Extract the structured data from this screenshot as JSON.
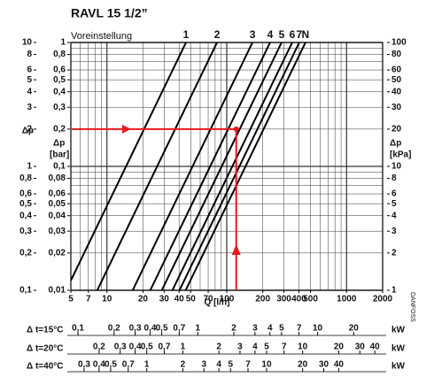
{
  "chart_data": {
    "type": "line",
    "log_scale": true,
    "grid": true,
    "title": "RAVL 15   1/2”",
    "subtitle": "Voreinstellung",
    "x_label": "Q [l/h]",
    "y_label": "Δp",
    "y_unit": "[bar]",
    "y2_label": "Δp",
    "y3_label": "Δp",
    "y3_unit": "[kPa]",
    "brand": "DANFOSS",
    "xlim": [
      5,
      2000
    ],
    "xticks": [
      5,
      7,
      10,
      20,
      30,
      40,
      50,
      70,
      100,
      200,
      300,
      400,
      500,
      1000,
      2000
    ],
    "ylim": [
      0.01,
      1
    ],
    "yticks": [
      {
        "value": 0.01,
        "label": "0,01"
      },
      {
        "value": 0.02,
        "label": "0,02"
      },
      {
        "value": 0.03,
        "label": "0,03"
      },
      {
        "value": 0.04,
        "label": "0,04"
      },
      {
        "value": 0.05,
        "label": "0,05"
      },
      {
        "value": 0.06,
        "label": "0,06"
      },
      {
        "value": 0.08,
        "label": "0,08"
      },
      {
        "value": 0.1,
        "label": "0,1"
      },
      {
        "value": 0.2,
        "label": "0,2"
      },
      {
        "value": 0.3,
        "label": "0,3"
      },
      {
        "value": 0.4,
        "label": "0,4"
      },
      {
        "value": 0.5,
        "label": "0,5"
      },
      {
        "value": 0.6,
        "label": "0,6"
      },
      {
        "value": 0.8,
        "label": "0,8"
      },
      1
    ],
    "y2lim": [
      0.1,
      10
    ],
    "y2ticks": [
      {
        "value": 0.1,
        "label": "0,1"
      },
      {
        "value": 0.2,
        "label": "0,2"
      },
      {
        "value": 0.3,
        "label": "0,3"
      },
      {
        "value": 0.4,
        "label": "0,4"
      },
      {
        "value": 0.5,
        "label": "0,5"
      },
      {
        "value": 0.6,
        "label": "0,6"
      },
      {
        "value": 0.8,
        "label": "0,8"
      },
      1,
      2,
      3,
      4,
      5,
      6,
      8,
      10
    ],
    "y3lim": [
      1,
      100
    ],
    "y3ticks": [
      1,
      2,
      3,
      4,
      5,
      6,
      8,
      10,
      20,
      30,
      40,
      50,
      60,
      80,
      100
    ],
    "series": [
      {
        "name": "1",
        "color": "#000000",
        "x": [
          5,
          45.7
        ],
        "values": [
          0.012,
          1
        ]
      },
      {
        "name": "2",
        "color": "#000000",
        "x": [
          8.3,
          83
        ],
        "values": [
          0.01,
          1
        ]
      },
      {
        "name": "3",
        "color": "#000000",
        "x": [
          16.4,
          164
        ],
        "values": [
          0.01,
          1
        ]
      },
      {
        "name": "4",
        "color": "#000000",
        "x": [
          23,
          230
        ],
        "values": [
          0.01,
          1
        ]
      },
      {
        "name": "5",
        "color": "#000000",
        "x": [
          28.7,
          287
        ],
        "values": [
          0.01,
          1
        ]
      },
      {
        "name": "6",
        "color": "#000000",
        "x": [
          35.2,
          352
        ],
        "values": [
          0.01,
          1
        ]
      },
      {
        "name": "7",
        "color": "#000000",
        "x": [
          40.3,
          403
        ],
        "values": [
          0.01,
          1
        ]
      },
      {
        "name": "N",
        "color": "#000000",
        "x": [
          45.4,
          454
        ],
        "values": [
          0.01,
          1
        ]
      }
    ],
    "example": {
      "color": "#e8191b",
      "x": 120,
      "y": 0.2
    },
    "power_scales": [
      {
        "label": "Δ t=15°C",
        "unit": "kW",
        "xlim": [
          0.0872,
          34.9
        ],
        "ticks": [
          {
            "value": 0.1,
            "label": "0,1"
          },
          {
            "value": 0.2,
            "label": "0,2"
          },
          {
            "value": 0.3,
            "label": "0,3"
          },
          {
            "value": 0.4,
            "label": "0,4"
          },
          {
            "value": 0.5,
            "label": "0,5"
          },
          {
            "value": 0.7,
            "label": "0,7"
          },
          1,
          2,
          3,
          4,
          5,
          7,
          10,
          20
        ]
      },
      {
        "label": "Δ t=20°C",
        "unit": "kW",
        "xlim": [
          0.1163,
          46.5
        ],
        "ticks": [
          {
            "value": 0.2,
            "label": "0,2"
          },
          {
            "value": 0.3,
            "label": "0,3"
          },
          {
            "value": 0.4,
            "label": "0,4"
          },
          {
            "value": 0.5,
            "label": "0,5"
          },
          {
            "value": 0.7,
            "label": "0,7"
          },
          1,
          2,
          3,
          4,
          5,
          7,
          10,
          20,
          30,
          40
        ]
      },
      {
        "label": "Δ t=40°C",
        "unit": "kW",
        "xlim": [
          0.2326,
          93.0
        ],
        "ticks": [
          {
            "value": 0.3,
            "label": "0,3"
          },
          {
            "value": 0.4,
            "label": "0,4"
          },
          {
            "value": 0.5,
            "label": "0,5"
          },
          {
            "value": 0.7,
            "label": "0,7"
          },
          1,
          2,
          3,
          4,
          5,
          7,
          10,
          20,
          30,
          40
        ]
      }
    ]
  }
}
